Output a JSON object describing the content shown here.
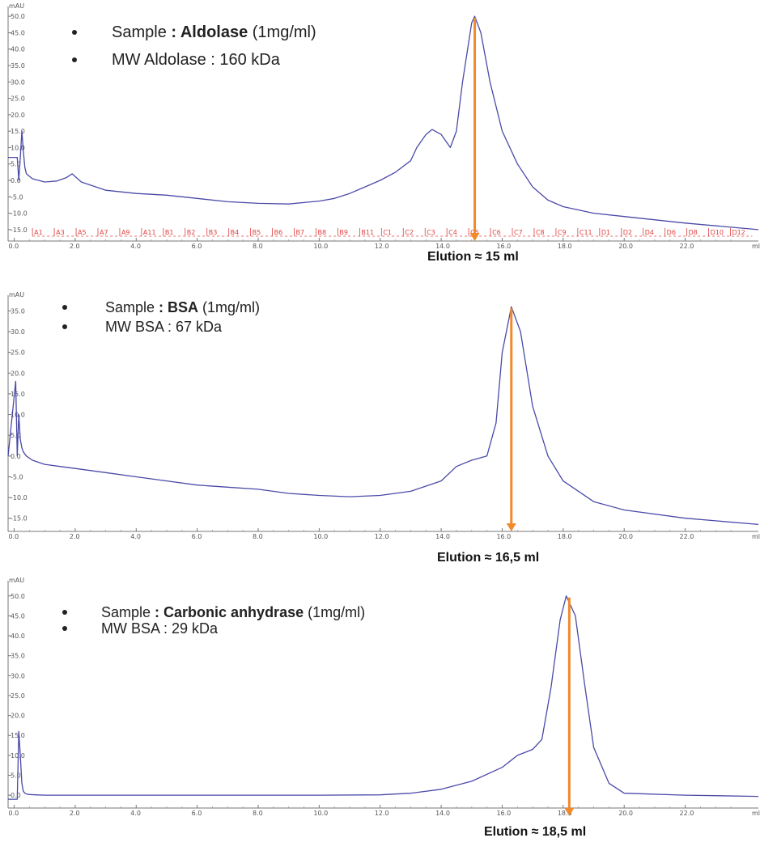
{
  "chart_data": [
    {
      "type": "line",
      "ylabel": "mAU",
      "xlabel": "ml",
      "y_ticks": [
        "50.0",
        "45.0",
        "40.0",
        "35.0",
        "30.0",
        "25.0",
        "20.0",
        "15.0",
        "10.0",
        "5.0",
        "0.0",
        "-5.0",
        "-10.0",
        "-15.0"
      ],
      "x_ticks": [
        "0.0",
        "2.0",
        "4.0",
        "6.0",
        "8.0",
        "10.0",
        "12.0",
        "14.0",
        "16.0",
        "18.0",
        "20.0",
        "22.0"
      ],
      "xlim": [
        -0.2,
        24.4
      ],
      "ylim": [
        -17,
        52
      ],
      "bullets": [
        {
          "prefix": "Sample ",
          "bold": ": Aldolase",
          "suffix": " (1mg/ml)"
        },
        {
          "prefix": "MW Aldolase : 160 kDa",
          "bold": "",
          "suffix": ""
        }
      ],
      "elution_label": "Elution ≈ 15 ml",
      "elution_x": 15.1,
      "fractions": [
        "A1",
        "A3",
        "A5",
        "A7",
        "A9",
        "A11",
        "B1",
        "B2",
        "B3",
        "B4",
        "B5",
        "B6",
        "B7",
        "B8",
        "B9",
        "B11",
        "C1",
        "C2",
        "C3",
        "C4",
        "C5",
        "C6",
        "C7",
        "C8",
        "C9",
        "C11",
        "D1",
        "D2",
        "D4",
        "D6",
        "D8",
        "D10",
        "D12"
      ],
      "series": [
        {
          "x": [
            -0.2,
            0.1,
            0.15,
            0.2,
            0.25,
            0.3,
            0.35,
            0.4,
            0.6,
            1.0,
            1.4,
            1.7,
            1.9,
            2.2,
            3.0,
            4.0,
            5.0,
            6.0,
            7.0,
            8.0,
            9.0,
            10.0,
            10.5,
            11.0,
            11.5,
            12.0,
            12.5,
            13.0,
            13.2,
            13.5,
            13.7,
            14.0,
            14.3,
            14.5,
            14.7,
            15.0,
            15.1,
            15.3,
            15.6,
            16.0,
            16.5,
            17.0,
            17.5,
            18.0,
            19.0,
            20.0,
            22.0,
            24.4
          ],
          "y": [
            7,
            7,
            0,
            7,
            15,
            9,
            4,
            2,
            0.5,
            -0.5,
            -0.2,
            0.8,
            2,
            -0.5,
            -3,
            -4,
            -4.5,
            -5.5,
            -6.5,
            -7,
            -7.2,
            -6.3,
            -5.5,
            -4,
            -2,
            0,
            2.5,
            6,
            10,
            14,
            15.5,
            14,
            10,
            15,
            30,
            48,
            50,
            45,
            30,
            15,
            5,
            -2,
            -6,
            -8,
            -10,
            -11,
            -13,
            -15
          ]
        }
      ]
    },
    {
      "type": "line",
      "ylabel": "mAU",
      "xlabel": "ml",
      "y_ticks": [
        "35.0",
        "30.0",
        "25.0",
        "20.0",
        "15.0",
        "10.0",
        "5.0",
        "0.0",
        "-5.0",
        "-10.0",
        "-15.0"
      ],
      "x_ticks": [
        "0.0",
        "2.0",
        "4.0",
        "6.0",
        "8.0",
        "10.0",
        "12.0",
        "14.0",
        "16.0",
        "18.0",
        "20.0",
        "22.0"
      ],
      "xlim": [
        -0.2,
        24.4
      ],
      "ylim": [
        -17,
        38
      ],
      "bullets": [
        {
          "prefix": "Sample ",
          "bold": ": BSA",
          "suffix": " (1mg/ml)"
        },
        {
          "prefix": "MW BSA : 67 kDa",
          "bold": "",
          "suffix": ""
        }
      ],
      "elution_label": "Elution ≈ 16,5 ml",
      "elution_x": 16.3,
      "series": [
        {
          "x": [
            -0.2,
            0.05,
            0.1,
            0.15,
            0.2,
            0.25,
            0.3,
            0.4,
            0.6,
            1.0,
            1.5,
            2.0,
            3.0,
            4.0,
            5.0,
            6.0,
            7.0,
            8.0,
            9.0,
            10.0,
            11.0,
            12.0,
            13.0,
            14.0,
            14.5,
            15.0,
            15.5,
            15.8,
            16.0,
            16.3,
            16.6,
            17.0,
            17.5,
            18.0,
            19.0,
            20.0,
            22.0,
            24.4
          ],
          "y": [
            0,
            18,
            0,
            10,
            4,
            2,
            1,
            0,
            -1,
            -2,
            -2.5,
            -3,
            -4,
            -5,
            -6,
            -7,
            -7.5,
            -8,
            -9,
            -9.5,
            -9.8,
            -9.5,
            -8.5,
            -6,
            -2.5,
            -1,
            0,
            8,
            25,
            36,
            30,
            12,
            0,
            -6,
            -11,
            -13,
            -15,
            -16.5
          ]
        }
      ]
    },
    {
      "type": "line",
      "ylabel": "mAU",
      "xlabel": "ml",
      "y_ticks": [
        "50.0",
        "45.0",
        "40.0",
        "35.0",
        "30.0",
        "25.0",
        "20.0",
        "15.0",
        "10.0",
        "5.0",
        "0.0"
      ],
      "x_ticks": [
        "0.0",
        "2.0",
        "4.0",
        "6.0",
        "8.0",
        "10.0",
        "12.0",
        "14.0",
        "16.0",
        "18.0",
        "20.0",
        "22.0"
      ],
      "xlim": [
        -0.2,
        24.4
      ],
      "ylim": [
        -2,
        53
      ],
      "bullets": [
        {
          "prefix": "Sample ",
          "bold": ": Carbonic anhydrase",
          "suffix": " (1mg/ml)"
        },
        {
          "prefix": "MW BSA : 29 kDa",
          "bold": "",
          "suffix": ""
        }
      ],
      "elution_label": "Elution ≈ 18,5 ml",
      "elution_x": 18.2,
      "series": [
        {
          "x": [
            -0.2,
            0.1,
            0.15,
            0.2,
            0.25,
            0.3,
            0.35,
            0.45,
            0.7,
            1.0,
            2.0,
            4.0,
            6.0,
            8.0,
            10.0,
            12.0,
            13.0,
            14.0,
            15.0,
            16.0,
            16.5,
            17.0,
            17.3,
            17.6,
            17.9,
            18.1,
            18.4,
            18.7,
            19.0,
            19.5,
            20.0,
            22.0,
            24.4
          ],
          "y": [
            -1,
            -1,
            16,
            10,
            3,
            1,
            0.5,
            0.2,
            0.1,
            0,
            0,
            0,
            0,
            0,
            0,
            0.1,
            0.5,
            1.5,
            3.5,
            7,
            10,
            11.5,
            14,
            27,
            44,
            50,
            45,
            28,
            12,
            3,
            0.5,
            0,
            -0.3
          ]
        }
      ]
    }
  ]
}
